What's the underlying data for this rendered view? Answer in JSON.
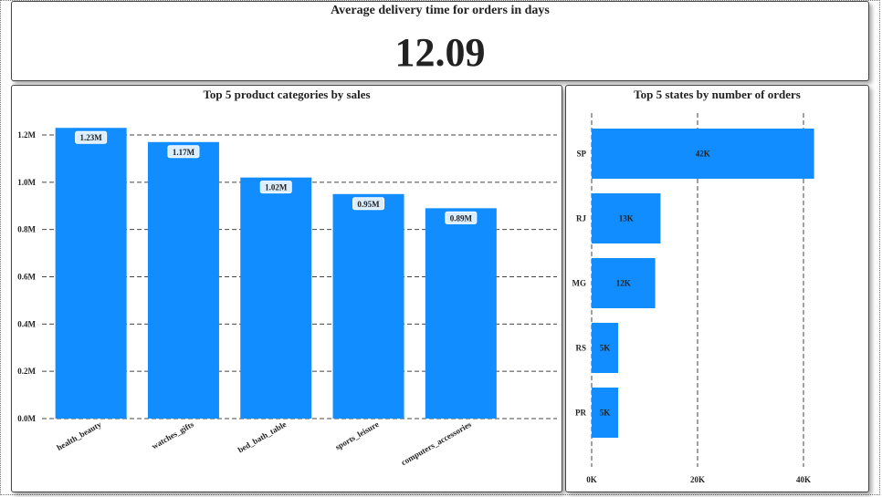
{
  "kpi": {
    "title": "Average delivery time for orders in days",
    "value": "12.09"
  },
  "chart_data": [
    {
      "type": "bar",
      "title": "Top 5 product categories by sales",
      "categories": [
        "health_beauty",
        "watches_gifts",
        "bed_bath_table",
        "sports_leisure",
        "computers_accessories"
      ],
      "values": [
        1.23,
        1.17,
        1.02,
        0.95,
        0.89
      ],
      "unit": "M",
      "data_labels": [
        "1.23M",
        "1.17M",
        "1.02M",
        "0.95M",
        "0.89M"
      ],
      "y_ticks": [
        "0.0M",
        "0.2M",
        "0.4M",
        "0.6M",
        "0.8M",
        "1.0M",
        "1.2M"
      ],
      "ylim": [
        0,
        1.2
      ],
      "grid": "horizontal dashed",
      "color": "#118DFF"
    },
    {
      "type": "bar",
      "orientation": "horizontal",
      "title": "Top 5 states by number of orders",
      "categories": [
        "SP",
        "RJ",
        "MG",
        "RS",
        "PR"
      ],
      "values": [
        42,
        13,
        12,
        5,
        5
      ],
      "unit": "K",
      "data_labels": [
        "42K",
        "13K",
        "12K",
        "5K",
        "5K"
      ],
      "x_ticks": [
        "0K",
        "20K",
        "40K"
      ],
      "xlim": [
        0,
        40
      ],
      "grid": "vertical dashed",
      "color": "#118DFF"
    }
  ]
}
